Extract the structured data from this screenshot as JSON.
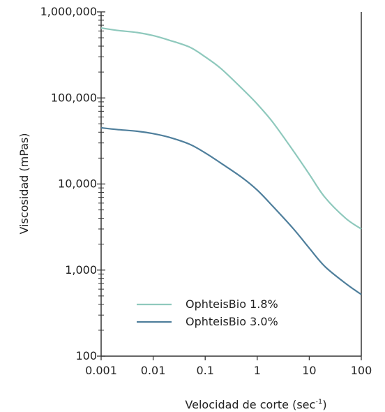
{
  "chart_data": {
    "type": "line",
    "xscale": "log",
    "yscale": "log",
    "xlim": [
      0.001,
      100
    ],
    "ylim": [
      100,
      1000000
    ],
    "x_ticks": [
      {
        "value": 0.001,
        "label": "0.001"
      },
      {
        "value": 0.01,
        "label": "0.01"
      },
      {
        "value": 0.1,
        "label": "0.1"
      },
      {
        "value": 1,
        "label": "1"
      },
      {
        "value": 10,
        "label": "10"
      },
      {
        "value": 100,
        "label": "100"
      }
    ],
    "y_ticks": [
      {
        "value": 100,
        "label": "100"
      },
      {
        "value": 1000,
        "label": "1,000"
      },
      {
        "value": 10000,
        "label": "10,000"
      },
      {
        "value": 100000,
        "label": "100,000"
      },
      {
        "value": 1000000,
        "label": "1,000,000"
      }
    ],
    "xlabel": "Velocidad de corte (sec",
    "xlabel_superscript": "-1",
    "xlabel_suffix": ")",
    "ylabel": "Viscosidad (mPas)",
    "legend_position": "bottom-left",
    "grid": false,
    "series": [
      {
        "name": "OphteisBio 1.8%",
        "color": "#8fc9bd",
        "x": [
          0.001,
          0.002,
          0.005,
          0.01,
          0.02,
          0.05,
          0.1,
          0.2,
          0.5,
          1,
          2,
          5,
          10,
          20,
          50,
          100
        ],
        "values": [
          650000,
          610000,
          575000,
          530000,
          470000,
          390000,
          300000,
          220000,
          130000,
          85000,
          52000,
          24000,
          13000,
          7000,
          4000,
          3000
        ]
      },
      {
        "name": "OphteisBio 3.0%",
        "color": "#4f7f9c",
        "x": [
          0.001,
          0.002,
          0.005,
          0.01,
          0.02,
          0.05,
          0.1,
          0.2,
          0.5,
          1,
          2,
          5,
          10,
          20,
          50,
          100
        ],
        "values": [
          45000,
          43000,
          41000,
          38500,
          35000,
          29000,
          23000,
          17500,
          12000,
          8500,
          5500,
          3000,
          1800,
          1100,
          700,
          520
        ]
      }
    ]
  }
}
